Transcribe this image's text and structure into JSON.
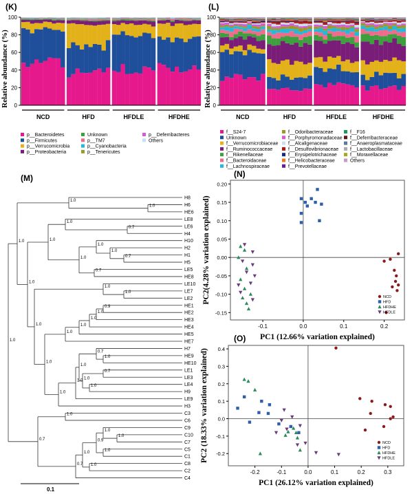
{
  "colors": {
    "bacteroidetes": "#e6198c",
    "firmicutes": "#1f4e9a",
    "verrucomicrobia": "#e3b21b",
    "proteobacteria": "#7a1d78",
    "unknown": "#3e9f3e",
    "tm7": "#f06a8c",
    "cyanobacteria": "#27b8d8",
    "tenericutes": "#9a9a2a",
    "deferribacteres": "#d65ad6",
    "others": "#c8e0f0",
    "ncd": "#8b1a1a",
    "hfd": "#2e5fa8",
    "hfdhe": "#2a8a5a",
    "hfdle": "#6a3a7a"
  },
  "chart_data": [
    {
      "type": "bar",
      "panel_label": "(K)",
      "ylabel": "Relative abundance (%)",
      "ylim": [
        0,
        100
      ],
      "yticks": [
        "0",
        "20",
        "40",
        "60",
        "80",
        "100"
      ],
      "groups": [
        "NCD",
        "HFD",
        "HFDLE",
        "HFDHE"
      ],
      "bars_per_group": 10,
      "stacked": true,
      "legend": [
        {
          "name": "p__Bacteroidetes",
          "color_key": "bacteroidetes"
        },
        {
          "name": "p__Firmicutes",
          "color_key": "firmicutes"
        },
        {
          "name": "p__Verrucomicrobia",
          "color_key": "verrucomicrobia"
        },
        {
          "name": "p__Proteobacteria",
          "color_key": "proteobacteria"
        },
        {
          "name": "Unknown",
          "color_key": "unknown"
        },
        {
          "name": "p__TM7",
          "color_key": "tm7"
        },
        {
          "name": "p__Cyanobacteria",
          "color_key": "cyanobacteria"
        },
        {
          "name": "p__Tenericutes",
          "color_key": "tenericutes"
        },
        {
          "name": "p__Deferribacteres",
          "color_key": "deferribacteres"
        },
        {
          "name": "Others",
          "color_key": "others"
        }
      ],
      "group_means": {
        "NCD": [
          48,
          38,
          8,
          3,
          1,
          0.5,
          0.5,
          0.3,
          0.2,
          0.5
        ],
        "HFD": [
          38,
          30,
          24,
          4,
          1,
          1,
          0.5,
          0.5,
          0.3,
          0.7
        ],
        "HFDLE": [
          42,
          38,
          12,
          4,
          1,
          1,
          0.5,
          0.5,
          0.3,
          0.7
        ],
        "HFDHE": [
          42,
          33,
          17,
          4,
          1,
          1,
          0.5,
          0.5,
          0.3,
          0.7
        ]
      }
    },
    {
      "type": "bar",
      "panel_label": "(L)",
      "ylabel": "Relative abundance (%)",
      "ylim": [
        0,
        100
      ],
      "yticks": [
        "0",
        "20",
        "40",
        "60",
        "80",
        "100"
      ],
      "groups": [
        "NCD",
        "HFD",
        "HFDLE",
        "HFDHE"
      ],
      "bars_per_group": 10,
      "stacked": true,
      "legend": [
        {
          "name": "f__S24-7",
          "color": "#e6198c"
        },
        {
          "name": "Unknown",
          "color": "#1f4e9a"
        },
        {
          "name": "f__Verrucomicrobiaceae",
          "color": "#e3b21b"
        },
        {
          "name": "f__Ruminococcaceae",
          "color": "#7a1d78"
        },
        {
          "name": "f__Rikenellaceae",
          "color": "#3e9f3e"
        },
        {
          "name": "f__Bacteroidaceae",
          "color": "#f06a8c"
        },
        {
          "name": "f__Lachnospiraceae",
          "color": "#27b8d8"
        },
        {
          "name": "f__Odoribacteraceae",
          "color": "#9a9a2a"
        },
        {
          "name": "f__Porphyromonadaceae",
          "color": "#d65ad6"
        },
        {
          "name": "f__Alcaligenaceae",
          "color": "#c8e0f0"
        },
        {
          "name": "f__Desulfovibrionaceae",
          "color": "#b01818"
        },
        {
          "name": "f__Erysipelotrichaceae",
          "color": "#1a2a7a"
        },
        {
          "name": "f__Helicobacteraceae",
          "color": "#e8781a"
        },
        {
          "name": "f__Prevotellaceae",
          "color": "#6a1a9a"
        },
        {
          "name": "f__F16",
          "color": "#1a9a5a"
        },
        {
          "name": "f__Deferribacteraceae",
          "color": "#5a1a1a"
        },
        {
          "name": "f__Anaeroplasmataceae",
          "color": "#5a7a9a"
        },
        {
          "name": "f__Lactobacillaceae",
          "color": "#aaaaaa"
        },
        {
          "name": "f__Moraxellaceae",
          "color": "#a8a81a"
        },
        {
          "name": "Others",
          "color": "#c89ac8"
        }
      ],
      "group_means": {
        "NCD": [
          30,
          30,
          6,
          10,
          5,
          4,
          4,
          2,
          2,
          1,
          1,
          1,
          1,
          0.5,
          0.5,
          0.3,
          0.3,
          0.2,
          0.2,
          1
        ],
        "HFD": [
          18,
          13,
          18,
          20,
          8,
          5,
          4,
          3,
          2,
          2,
          2,
          1,
          1,
          0.5,
          0.5,
          0.3,
          0.3,
          0.2,
          0.2,
          1
        ],
        "HFDLE": [
          22,
          18,
          12,
          18,
          7,
          5,
          4,
          3,
          2,
          2,
          2,
          1,
          1,
          0.5,
          0.5,
          0.3,
          0.3,
          0.2,
          0.2,
          1
        ],
        "HFDHE": [
          20,
          14,
          16,
          22,
          8,
          5,
          4,
          3,
          2,
          1.5,
          1.5,
          0.5,
          0.5,
          0.5,
          0.5,
          0.3,
          0.3,
          0.2,
          0.2,
          1
        ]
      }
    },
    {
      "type": "dendrogram",
      "panel_label": "(M)",
      "scale_label": "0.1",
      "leaves": [
        "H8",
        "H6",
        "HE6",
        "LE8",
        "LE6",
        "H4",
        "H10",
        "H2",
        "H1",
        "H5",
        "LE5",
        "HE8",
        "LE10",
        "LE7",
        "LE2",
        "HE1",
        "HE2",
        "HE3",
        "HE4",
        "HE5",
        "HE7",
        "H7",
        "HE9",
        "HE10",
        "LE1",
        "LE3",
        "LE4",
        "H9",
        "LE9",
        "H3",
        "C3",
        "C6",
        "C9",
        "C10",
        "C7",
        "C5",
        "C1",
        "C8",
        "C2",
        "C4"
      ],
      "node_support_labels": [
        "1.0",
        "1.0",
        "0.7",
        "1.0",
        "0.7",
        "1.0",
        "1.0",
        "0.7",
        "1.0",
        "1.0",
        "1.0",
        "1.0",
        "0.9",
        "1.0",
        "1.0",
        "1.0",
        "1.0",
        "1.0",
        "0.7",
        "0.7",
        "1.0",
        "1.0",
        "1.0",
        "1.0",
        "1.0",
        "1.0",
        "1.0",
        "1.0",
        "1.0",
        "1.0",
        "1.0",
        "1.0",
        "0.9"
      ]
    },
    {
      "type": "scatter",
      "panel_label": "(N)",
      "xlabel": "PC1 (12.66% variation explained)",
      "ylabel": "PC2(4.28% variation explained)",
      "xlim": [
        -0.18,
        0.25
      ],
      "ylim": [
        -0.17,
        0.21
      ],
      "xticks": [
        -0.1,
        0.0,
        0.1,
        0.2
      ],
      "yticks": [
        -0.15,
        -0.1,
        -0.05,
        0.0,
        0.05,
        0.1,
        0.15,
        0.2
      ],
      "xtick_labels": [
        "-0.1",
        "0.0",
        "0.1",
        "0.2"
      ],
      "ytick_labels": [
        "-0.15",
        "-0.10",
        "-0.05",
        "0.00",
        "0.05",
        "0.10",
        "0.15",
        "0.20"
      ],
      "legend_loc": "bottom-right",
      "series": [
        {
          "name": "NCD",
          "marker": "circle",
          "color_key": "ncd",
          "points": [
            [
              0.235,
              0.01
            ],
            [
              0.2,
              -0.01
            ],
            [
              0.215,
              -0.005
            ],
            [
              0.225,
              -0.035
            ],
            [
              0.23,
              -0.05
            ],
            [
              0.228,
              -0.065
            ],
            [
              0.235,
              -0.075
            ],
            [
              0.22,
              -0.08
            ],
            [
              0.232,
              -0.09
            ],
            [
              0.205,
              -0.15
            ]
          ]
        },
        {
          "name": "HFD",
          "marker": "square",
          "color_key": "hfd",
          "points": [
            [
              0.035,
              0.185
            ],
            [
              -0.005,
              0.16
            ],
            [
              0.02,
              0.16
            ],
            [
              0.005,
              0.15
            ],
            [
              0.03,
              0.15
            ],
            [
              0.045,
              0.145
            ],
            [
              0.01,
              0.14
            ],
            [
              -0.005,
              0.12
            ],
            [
              0.04,
              0.1
            ],
            [
              -0.005,
              0.095
            ]
          ]
        },
        {
          "name": "HFDHE",
          "marker": "triangle",
          "color_key": "hfdhe",
          "points": [
            [
              -0.155,
              0.03
            ],
            [
              -0.145,
              0.02
            ],
            [
              -0.16,
              0.0
            ],
            [
              -0.14,
              -0.03
            ],
            [
              -0.155,
              -0.06
            ],
            [
              -0.145,
              -0.085
            ],
            [
              -0.13,
              -0.1
            ],
            [
              -0.15,
              -0.11
            ],
            [
              -0.14,
              -0.125
            ],
            [
              -0.135,
              -0.14
            ]
          ]
        },
        {
          "name": "HFDLE",
          "marker": "triangle-down",
          "color_key": "hfdle",
          "points": [
            [
              -0.145,
              0.035
            ],
            [
              -0.125,
              0.015
            ],
            [
              -0.15,
              -0.01
            ],
            [
              -0.125,
              -0.02
            ],
            [
              -0.14,
              -0.04
            ],
            [
              -0.12,
              -0.05
            ],
            [
              -0.16,
              -0.075
            ],
            [
              -0.13,
              -0.07
            ],
            [
              -0.155,
              -0.095
            ],
            [
              -0.125,
              -0.115
            ]
          ]
        }
      ]
    },
    {
      "type": "scatter",
      "panel_label": "(O)",
      "xlabel": "PC1 (26.12% variation explained)",
      "ylabel": "PC2 (18.33% variation explained)",
      "xlim": [
        -0.3,
        0.36
      ],
      "ylim": [
        -0.27,
        0.42
      ],
      "xticks": [
        -0.2,
        -0.1,
        0.0,
        0.1,
        0.2,
        0.3
      ],
      "yticks": [
        -0.2,
        -0.1,
        0.0,
        0.1,
        0.2,
        0.3,
        0.4
      ],
      "xtick_labels": [
        "-0.2",
        "-0.1",
        "0.0",
        "0.1",
        "0.2",
        "0.3"
      ],
      "ytick_labels": [
        "-0.2",
        "-0.1",
        "0.0",
        "0.1",
        "0.2",
        "0.3",
        "0.4"
      ],
      "legend_loc": "bottom-right",
      "series": [
        {
          "name": "NCD",
          "marker": "circle",
          "color_key": "ncd",
          "points": [
            [
              0.105,
              0.405
            ],
            [
              0.195,
              0.115
            ],
            [
              0.24,
              0.1
            ],
            [
              0.29,
              0.08
            ],
            [
              0.31,
              0.07
            ],
            [
              0.235,
              0.03
            ],
            [
              0.31,
              0.0
            ],
            [
              0.32,
              0.01
            ],
            [
              0.285,
              -0.045
            ],
            [
              0.215,
              -0.065
            ]
          ]
        },
        {
          "name": "HFD",
          "marker": "square",
          "color_key": "hfd",
          "points": [
            [
              -0.24,
              0.125
            ],
            [
              -0.175,
              0.1
            ],
            [
              -0.145,
              0.08
            ],
            [
              -0.15,
              0.03
            ],
            [
              -0.185,
              0.035
            ],
            [
              -0.265,
              0.06
            ],
            [
              -0.22,
              -0.02
            ],
            [
              -0.11,
              -0.03
            ],
            [
              -0.065,
              -0.045
            ],
            [
              -0.035,
              -0.08
            ]
          ]
        },
        {
          "name": "HFDHE",
          "marker": "triangle",
          "color_key": "hfdhe",
          "points": [
            [
              -0.24,
              0.225
            ],
            [
              -0.225,
              0.215
            ],
            [
              -0.2,
              0.165
            ],
            [
              -0.055,
              -0.055
            ],
            [
              -0.075,
              -0.075
            ],
            [
              -0.045,
              -0.08
            ],
            [
              -0.085,
              -0.095
            ],
            [
              -0.04,
              -0.11
            ],
            [
              -0.03,
              -0.18
            ],
            [
              -0.18,
              -0.2
            ]
          ]
        },
        {
          "name": "HFDLE",
          "marker": "triangle-down",
          "color_key": "hfdle",
          "points": [
            [
              -0.09,
              0.05
            ],
            [
              -0.06,
              0.01
            ],
            [
              -0.1,
              -0.01
            ],
            [
              -0.03,
              -0.04
            ],
            [
              -0.08,
              -0.06
            ],
            [
              -0.12,
              -0.08
            ],
            [
              -0.01,
              -0.14
            ],
            [
              -0.04,
              -0.15
            ],
            [
              0.03,
              -0.195
            ],
            [
              0.115,
              -0.205
            ]
          ]
        }
      ]
    }
  ]
}
